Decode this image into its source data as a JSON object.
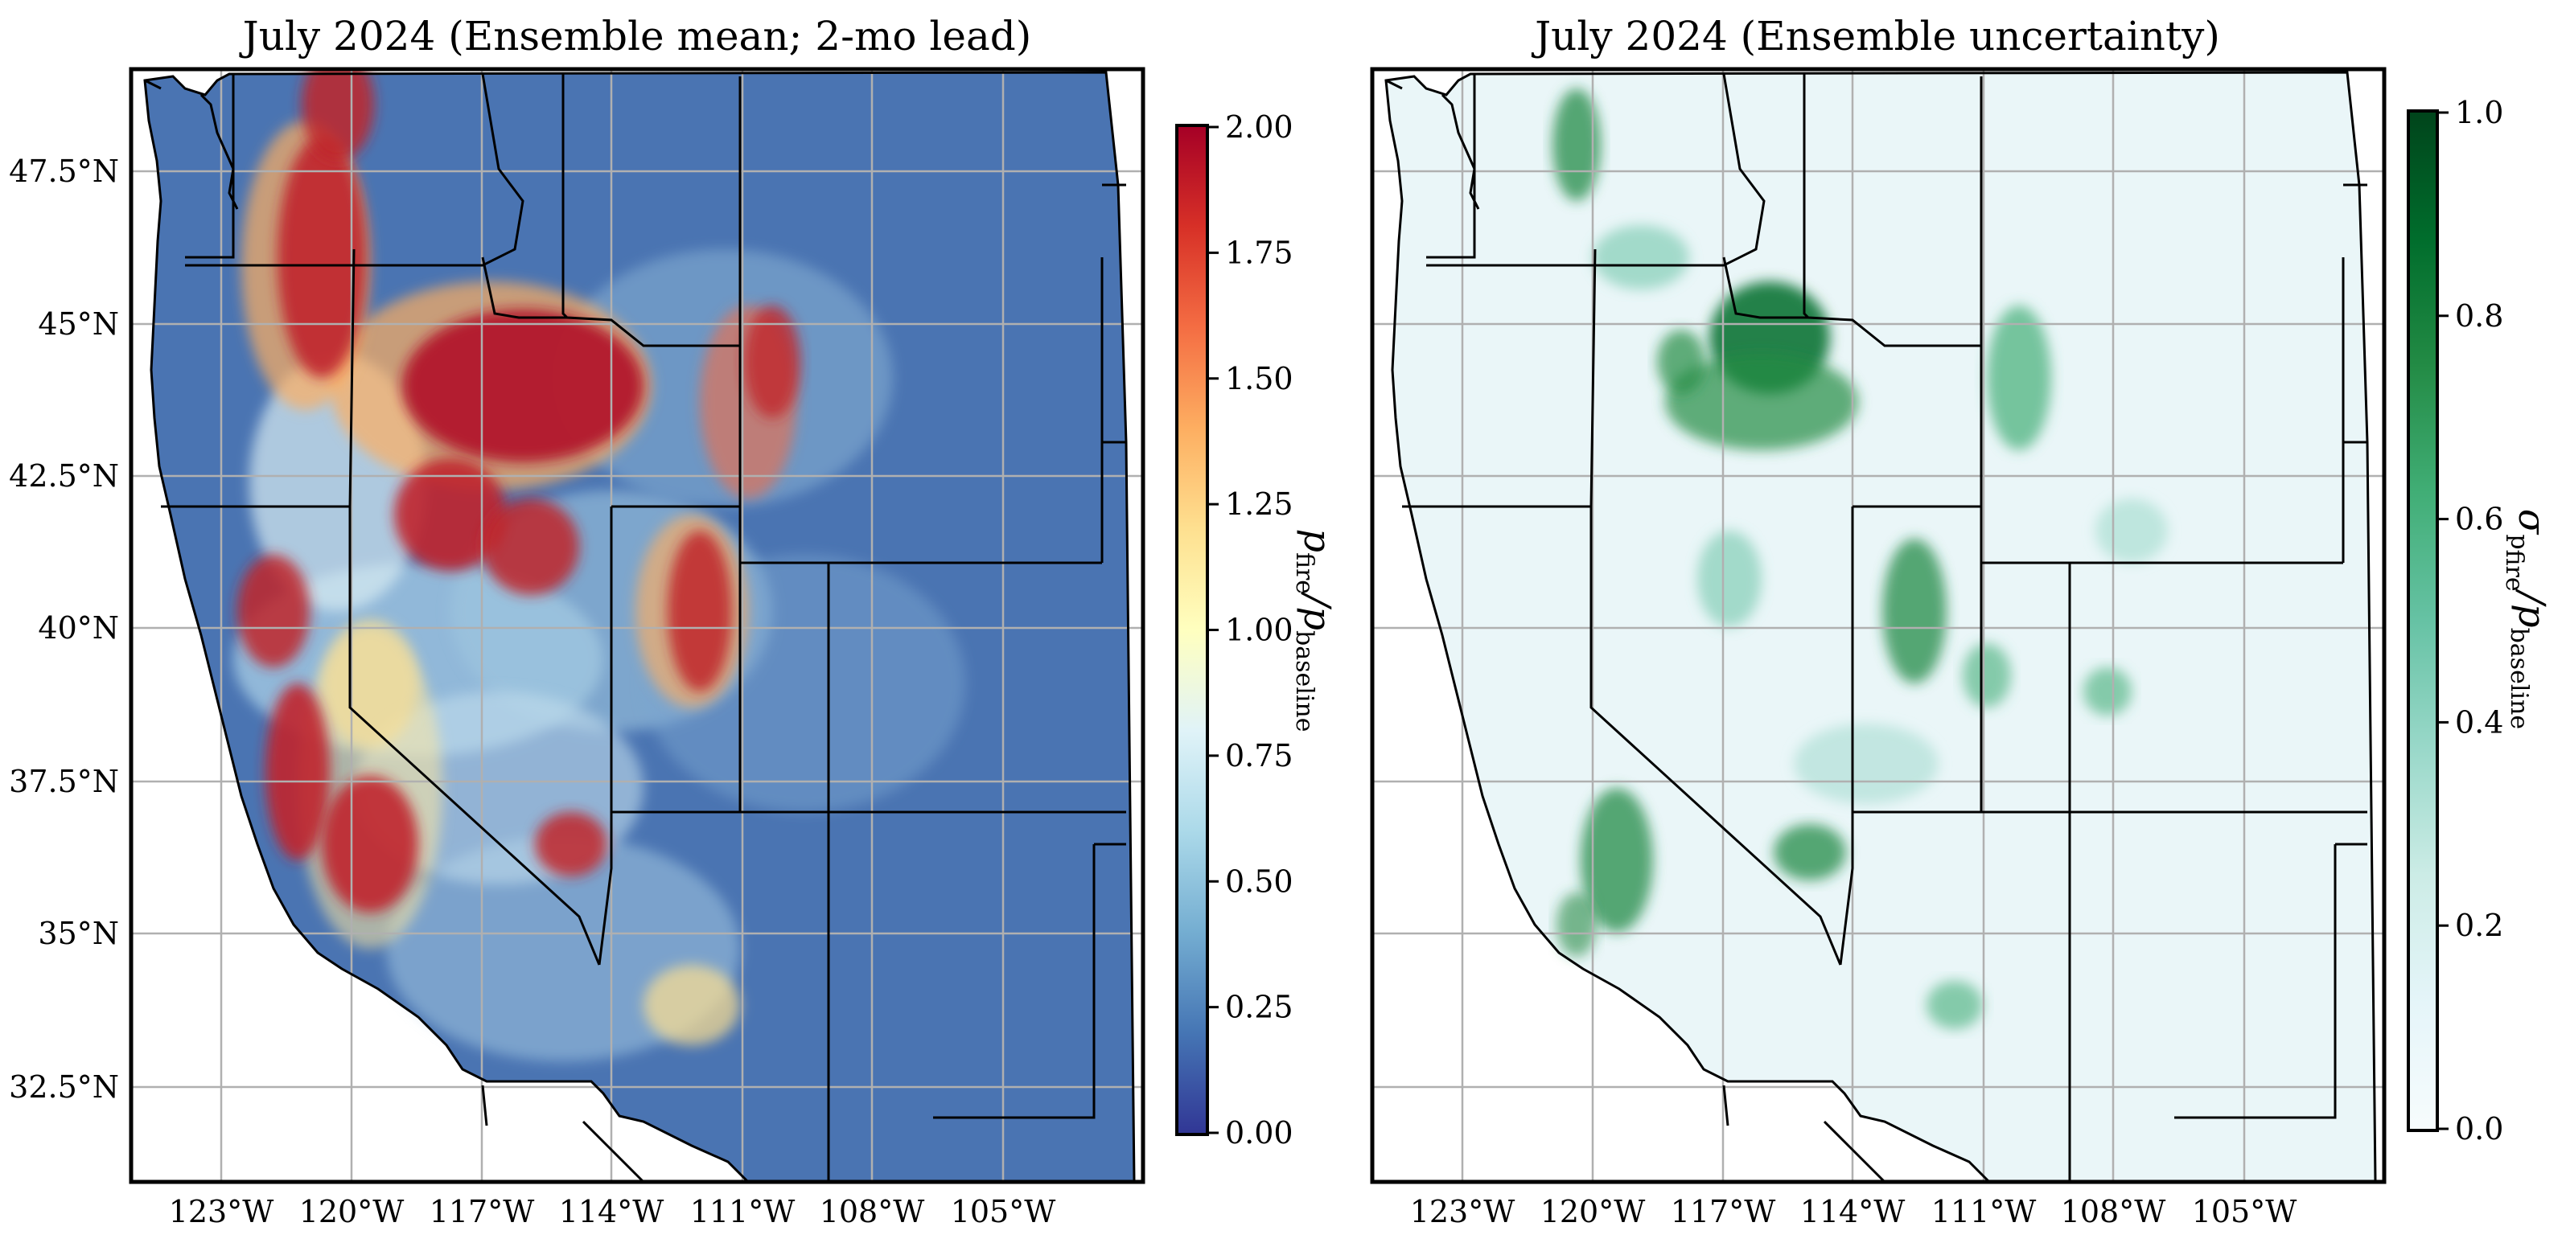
{
  "panels": [
    {
      "title": "July 2024 (Ensemble mean; 2-mo lead)",
      "colorbar": {
        "label_main": "p",
        "label_num_sub": "fire",
        "label_sep": "/",
        "label_den_main": "p",
        "label_den_sub": "baseline",
        "ticks": [
          "2.00",
          "1.75",
          "1.50",
          "1.25",
          "1.00",
          "0.75",
          "0.50",
          "0.25",
          "0.00"
        ],
        "colors": [
          "#a50026",
          "#d73027",
          "#f46d43",
          "#fdae61",
          "#fee090",
          "#ffffbf",
          "#e0f3f8",
          "#abd9e9",
          "#74add1",
          "#4575b4",
          "#313695"
        ]
      }
    },
    {
      "title": "July 2024 (Ensemble uncertainty)",
      "colorbar": {
        "label_main": "σ",
        "label_num_sub": "p",
        "label_num_subsub": "fire",
        "label_sep": "/",
        "label_den_main": "p",
        "label_den_sub": "baseline",
        "ticks": [
          "1.0",
          "0.8",
          "0.6",
          "0.4",
          "0.2",
          "0.0"
        ],
        "colors": [
          "#00441b",
          "#006d2c",
          "#238b45",
          "#41ae76",
          "#66c2a4",
          "#99d8c9",
          "#ccece6",
          "#e5f5f9",
          "#f7fcfd"
        ]
      }
    }
  ],
  "axes": {
    "lat_ticks": [
      "47.5°N",
      "45°N",
      "42.5°N",
      "40°N",
      "37.5°N",
      "35°N",
      "32.5°N"
    ],
    "lon_ticks": [
      "123°W",
      "120°W",
      "117°W",
      "114°W",
      "111°W",
      "108°W",
      "105°W"
    ]
  }
}
